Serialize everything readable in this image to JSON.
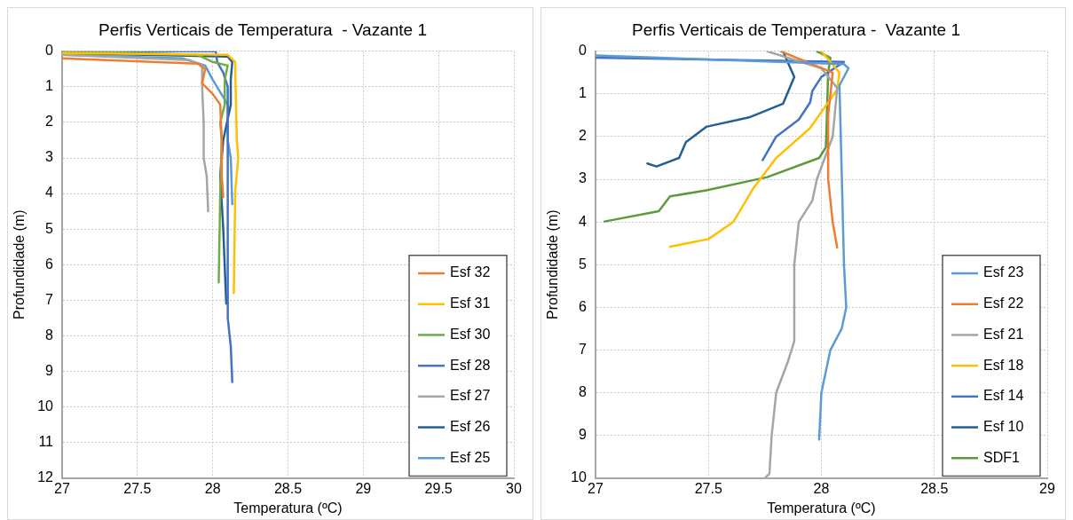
{
  "chart_data": [
    {
      "type": "line",
      "title": "Perfis Verticais de Temperatura  - Vazante 1",
      "xlabel": "Temperatura (ºC)",
      "ylabel": "Profundidade (m)",
      "xlim": [
        27,
        30
      ],
      "xticks": [
        27,
        27.5,
        28,
        28.5,
        29,
        29.5,
        30
      ],
      "ylim": [
        12,
        0
      ],
      "yticks": [
        0,
        1,
        2,
        3,
        4,
        5,
        6,
        7,
        8,
        9,
        10,
        11,
        12
      ],
      "grid": true,
      "legend": "bottom right",
      "marker": "none",
      "series": [
        {
          "name": "Esf 32",
          "color": "#ed7d31",
          "x": [
            27.0,
            27.9,
            27.95,
            27.93,
            28.0,
            28.05,
            28.06,
            28.06,
            28.07
          ],
          "values": [
            0.2,
            0.35,
            0.5,
            0.9,
            1.2,
            1.5,
            2.5,
            3.5,
            4.1
          ]
        },
        {
          "name": "Esf 31",
          "color": "#ffc000",
          "x": [
            27.0,
            28.1,
            28.15,
            28.15,
            28.16,
            28.17,
            28.15,
            28.14
          ],
          "values": [
            0.05,
            0.1,
            0.3,
            0.6,
            2.5,
            3.0,
            3.9,
            6.8
          ]
        },
        {
          "name": "Esf 30",
          "color": "#70ad47",
          "x": [
            27.0,
            27.9,
            28.0,
            28.1,
            28.08,
            28.08,
            28.05,
            28.06,
            28.05,
            28.04
          ],
          "values": [
            0.0,
            0.1,
            0.3,
            0.4,
            0.8,
            1.5,
            2.0,
            2.5,
            4.0,
            6.5
          ]
        },
        {
          "name": "Esf 28",
          "color": "#4472c4",
          "x": [
            27.0,
            28.02,
            28.03,
            28.07,
            28.1,
            28.1,
            28.12,
            28.13
          ],
          "values": [
            0.0,
            0.0,
            0.3,
            0.6,
            1.0,
            7.5,
            8.3,
            9.3
          ]
        },
        {
          "name": "Esf 27",
          "color": "#a5a5a5",
          "x": [
            27.0,
            27.85,
            27.93,
            27.93,
            27.94,
            27.94,
            27.96,
            27.97
          ],
          "values": [
            0.1,
            0.25,
            0.4,
            1.0,
            2.0,
            3.0,
            3.5,
            4.5
          ]
        },
        {
          "name": "Esf 26",
          "color": "#255e91",
          "x": [
            27.0,
            28.1,
            28.13,
            28.12,
            28.12,
            28.07,
            28.05,
            28.07,
            28.09
          ],
          "values": [
            0.05,
            0.15,
            0.3,
            0.8,
            1.5,
            2.5,
            3.5,
            5.0,
            7.1
          ]
        },
        {
          "name": "Esf 25",
          "color": "#5b9bd5",
          "x": [
            27.0,
            27.8,
            27.95,
            28.0,
            28.1,
            28.1,
            28.12,
            28.13
          ],
          "values": [
            0.1,
            0.2,
            0.4,
            0.8,
            1.5,
            2.5,
            3.0,
            4.3
          ]
        }
      ]
    },
    {
      "type": "line",
      "title": "Perfis Verticais de Temperatura -  Vazante 1",
      "xlabel": "Temperatura (ºC)",
      "ylabel": "Profundidade (m)",
      "xlim": [
        27,
        29
      ],
      "xticks": [
        27,
        27.5,
        28,
        28.5,
        29
      ],
      "ylim": [
        10,
        0
      ],
      "yticks": [
        0,
        1,
        2,
        3,
        4,
        5,
        6,
        7,
        8,
        9,
        10
      ],
      "grid": true,
      "legend": "bottom right",
      "marker": "none",
      "series": [
        {
          "name": "Esf 23",
          "color": "#5b9bd5",
          "x": [
            27.0,
            28.1,
            28.12,
            28.08,
            28.09,
            28.1,
            28.11,
            28.09,
            28.04,
            28.0,
            27.99
          ],
          "values": [
            0.1,
            0.3,
            0.4,
            0.8,
            2.84,
            5.0,
            6.0,
            6.5,
            7.0,
            8.0,
            9.1
          ]
        },
        {
          "name": "Esf 22",
          "color": "#ed7d31",
          "x": [
            27.82,
            28.05,
            28.03,
            28.03,
            28.05,
            28.07
          ],
          "values": [
            0.0,
            0.5,
            1.5,
            3.0,
            4.0,
            4.6
          ]
        },
        {
          "name": "Esf 21",
          "color": "#a5a5a5",
          "x": [
            27.76,
            28.0,
            28.07,
            28.05,
            27.98,
            27.96,
            27.9,
            27.88,
            27.88,
            27.85,
            27.8,
            27.78,
            27.77,
            27.75
          ],
          "values": [
            0.0,
            0.4,
            0.86,
            2.0,
            3.0,
            3.5,
            4.0,
            5.0,
            6.8,
            7.3,
            8.0,
            9.0,
            9.9,
            10.0
          ]
        },
        {
          "name": "Esf 18",
          "color": "#ffc000",
          "x": [
            28.0,
            28.08,
            28.07,
            27.95,
            27.8,
            27.7,
            27.61,
            27.5,
            27.33
          ],
          "values": [
            0.0,
            0.5,
            0.9,
            1.8,
            2.5,
            3.2,
            4.0,
            4.4,
            4.58
          ]
        },
        {
          "name": "Esf 14",
          "color": "#4472c4",
          "x": [
            27.0,
            28.1,
            28.0,
            27.96,
            27.95,
            27.9,
            27.8,
            27.74
          ],
          "values": [
            0.15,
            0.25,
            0.6,
            0.93,
            1.2,
            1.6,
            2.0,
            2.55
          ]
        },
        {
          "name": "Esf 10",
          "color": "#255e91",
          "x": [
            27.83,
            27.88,
            27.83,
            27.68,
            27.49,
            27.4,
            27.37,
            27.27,
            27.23
          ],
          "values": [
            0.0,
            0.6,
            1.23,
            1.55,
            1.77,
            2.13,
            2.5,
            2.7,
            2.63
          ]
        },
        {
          "name": "SDF1",
          "color": "#5e9a3a",
          "x": [
            27.98,
            28.04,
            28.03,
            28.02,
            27.99,
            27.76,
            27.49,
            27.33,
            27.28,
            27.04
          ],
          "values": [
            0.0,
            0.15,
            0.5,
            2.25,
            2.5,
            2.95,
            3.26,
            3.4,
            3.75,
            3.99
          ]
        }
      ]
    }
  ]
}
